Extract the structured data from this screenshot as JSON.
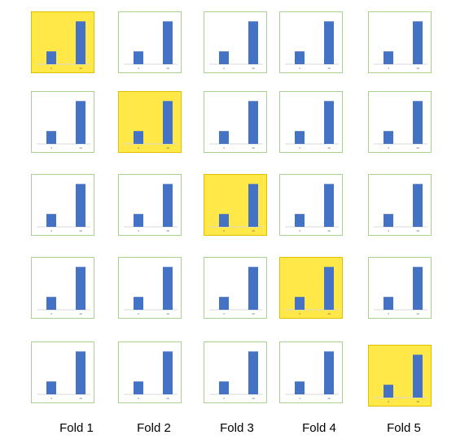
{
  "folds": [
    {
      "label": "Fold 1",
      "highlight_row": 0
    },
    {
      "label": "Fold 2",
      "highlight_row": 1
    },
    {
      "label": "Fold 3",
      "highlight_row": 2
    },
    {
      "label": "Fold 4",
      "highlight_row": 3
    },
    {
      "label": "Fold 5",
      "highlight_row": 4
    }
  ],
  "rows": 5,
  "chart_data": {
    "type": "bar",
    "categories": [
      "3",
      "10"
    ],
    "values": [
      3,
      10
    ],
    "ylim": [
      0,
      11
    ],
    "grid": false
  },
  "colors": {
    "bar": "#4472c4",
    "highlight": "#ffe847",
    "border": "#a9d18e"
  }
}
